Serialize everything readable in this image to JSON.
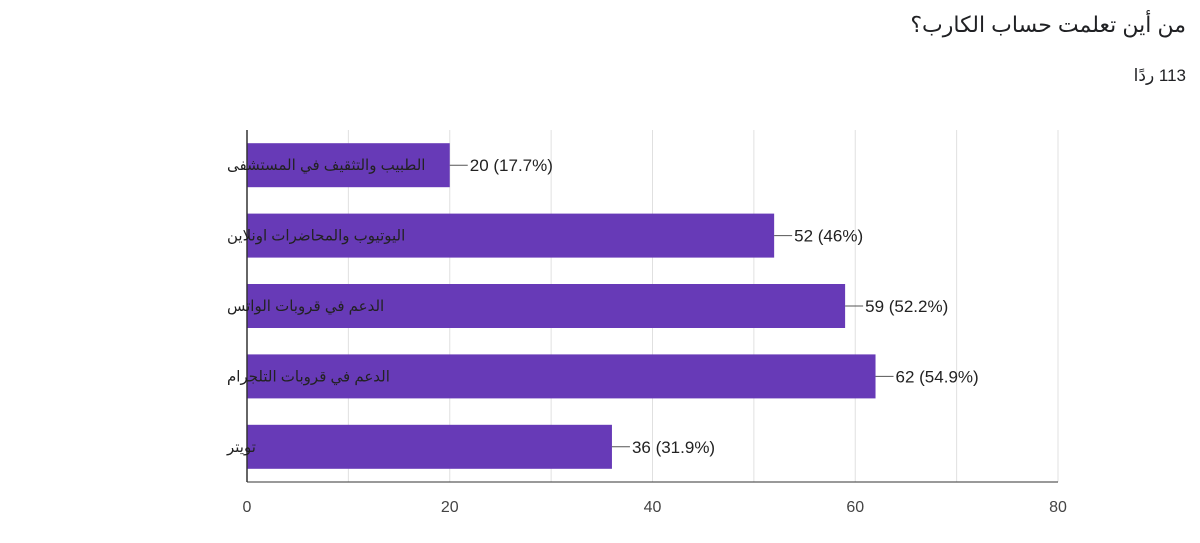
{
  "question": {
    "title": "من أين تعلمت حساب الكارب؟",
    "responses": "113 ردًا"
  },
  "colors": {
    "bar": "#673ab7",
    "grid": "#e0e0e0",
    "axis": "#333333"
  },
  "chart_data": {
    "type": "bar",
    "orientation": "horizontal",
    "title": "من أين تعلمت حساب الكارب؟",
    "xlabel": "",
    "ylabel": "",
    "categories": [
      "الطبيب والتثقيف في المستشفى",
      "اليوتيوب والمحاضرات اونلاين",
      "الدعم في قروبات الواتس",
      "الدعم في قروبات التلجرام",
      "تويتر"
    ],
    "values": [
      20,
      52,
      59,
      62,
      36
    ],
    "data_labels": [
      "20 (17.7%)",
      "52 (46%)",
      "59 (52.2%)",
      "62 (54.9%)",
      "36 (31.9%)"
    ],
    "xlim": [
      0,
      80
    ],
    "ticks": [
      "0",
      "20",
      "40",
      "60",
      "80"
    ],
    "grid": true,
    "legend": "none"
  }
}
